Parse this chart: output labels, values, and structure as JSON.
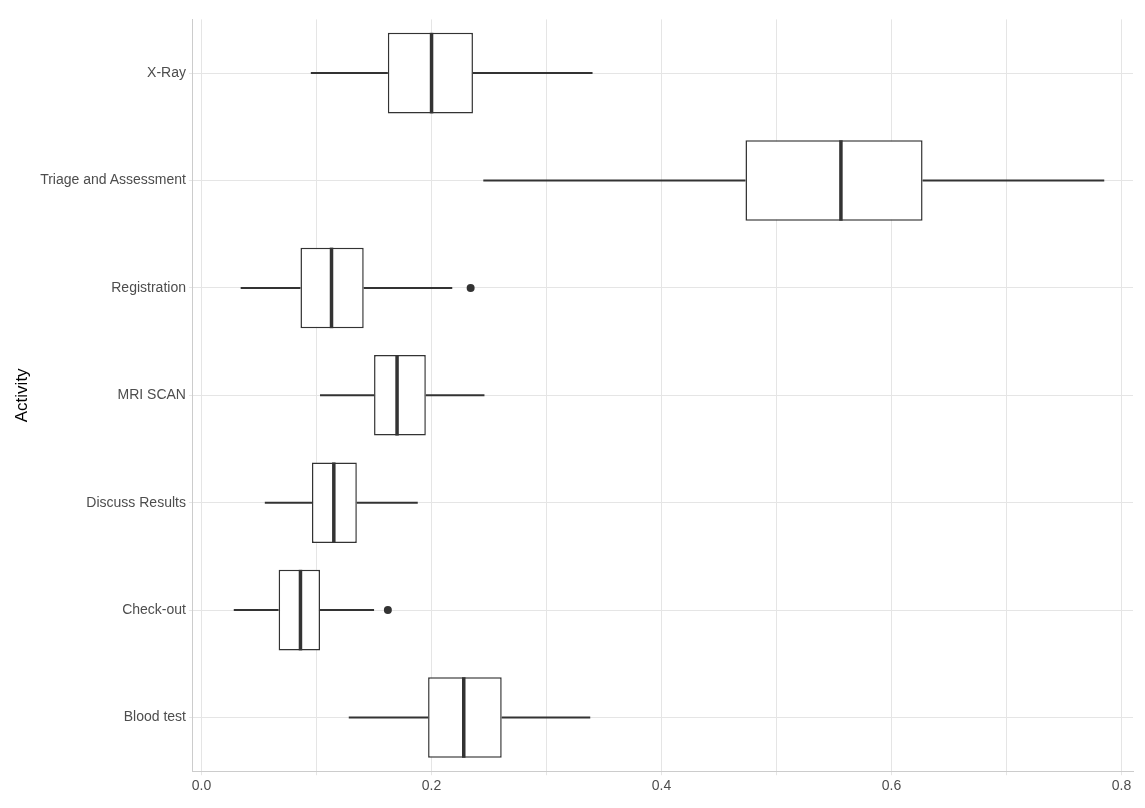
{
  "chart_data": {
    "type": "box",
    "ylabel": "Activity",
    "orientation": "horizontal",
    "grid": true,
    "categories": [
      "X-Ray",
      "Triage and Assessment",
      "Registration",
      "MRI SCAN",
      "Discuss Results",
      "Check-out",
      "Blood test"
    ],
    "boxes": [
      {
        "low": 0.095,
        "q1": 0.162,
        "median": 0.2,
        "q3": 0.236,
        "high": 0.34
      },
      {
        "low": 0.245,
        "q1": 0.473,
        "median": 0.556,
        "q3": 0.627,
        "high": 0.785
      },
      {
        "low": 0.034,
        "q1": 0.086,
        "median": 0.113,
        "q3": 0.141,
        "high": 0.218,
        "outliers": [
          0.234
        ]
      },
      {
        "low": 0.103,
        "q1": 0.15,
        "median": 0.17,
        "q3": 0.195,
        "high": 0.246
      },
      {
        "low": 0.055,
        "q1": 0.096,
        "median": 0.115,
        "q3": 0.135,
        "high": 0.188
      },
      {
        "low": 0.028,
        "q1": 0.067,
        "median": 0.086,
        "q3": 0.103,
        "high": 0.15,
        "outliers": [
          0.162
        ]
      },
      {
        "low": 0.128,
        "q1": 0.197,
        "median": 0.228,
        "q3": 0.261,
        "high": 0.338
      }
    ],
    "color": "#333333",
    "xlim": [
      -0.0075,
      0.81
    ],
    "xticks": [
      {
        "value": 0.0,
        "label": "0.0"
      },
      {
        "value": 0.1,
        "label": null
      },
      {
        "value": 0.2,
        "label": "0.2"
      },
      {
        "value": 0.3,
        "label": null
      },
      {
        "value": 0.4,
        "label": "0.4"
      },
      {
        "value": 0.5,
        "label": null
      },
      {
        "value": 0.6,
        "label": "0.6"
      },
      {
        "value": 0.7,
        "label": null
      },
      {
        "value": 0.8,
        "label": "0.8"
      }
    ]
  }
}
